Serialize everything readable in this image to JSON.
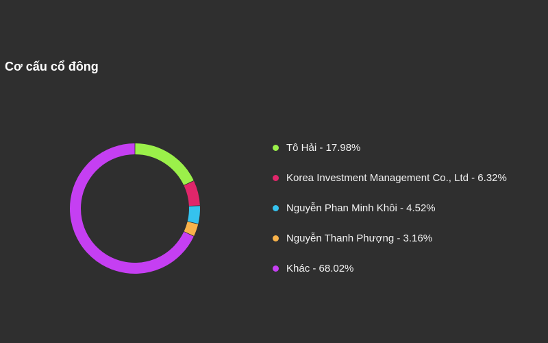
{
  "chart_data": {
    "type": "pie",
    "title": "Cơ cấu cổ đông",
    "legend_position": "right",
    "slices": [
      {
        "label": "Tô Hải",
        "value": 17.98,
        "legend_text": "Tô Hải - 17.98%",
        "color": "#9bf04a"
      },
      {
        "label": "Korea Investment Management Co., Ltd",
        "value": 6.32,
        "legend_text": "Korea Investment Management Co., Ltd - 6.32%",
        "color": "#e0266a"
      },
      {
        "label": "Nguyễn Phan Minh Khôi",
        "value": 4.52,
        "legend_text": "Nguyễn Phan Minh Khôi - 4.52%",
        "color": "#35c2ee"
      },
      {
        "label": "Nguyễn Thanh Phượng",
        "value": 3.16,
        "legend_text": "Nguyễn Thanh Phượng - 3.16%",
        "color": "#f8b24a"
      },
      {
        "label": "Khác",
        "value": 68.02,
        "legend_text": "Khác - 68.02%",
        "color": "#c53ff2"
      }
    ]
  },
  "colors": {
    "background": "#2f2f2f",
    "text": "#f2f2f2"
  }
}
